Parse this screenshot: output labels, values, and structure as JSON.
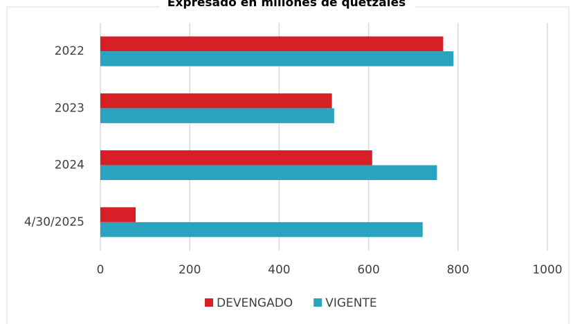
{
  "chart_data": {
    "type": "hbar",
    "title": "Expresado en millones de quetzales",
    "categories": [
      "2022",
      "2023",
      "2024",
      "4/30/2025"
    ],
    "series": [
      {
        "name": "DEVENGADO",
        "color": "#d71f27",
        "values": [
          767,
          518,
          608,
          79
        ]
      },
      {
        "name": "VIGENTE",
        "color": "#2aa3bf",
        "values": [
          790,
          523,
          753,
          721
        ]
      }
    ],
    "xlim": [
      0,
      1000
    ],
    "xticks": [
      0,
      200,
      400,
      600,
      800,
      1000
    ],
    "grid": true,
    "legend": "bottom"
  }
}
